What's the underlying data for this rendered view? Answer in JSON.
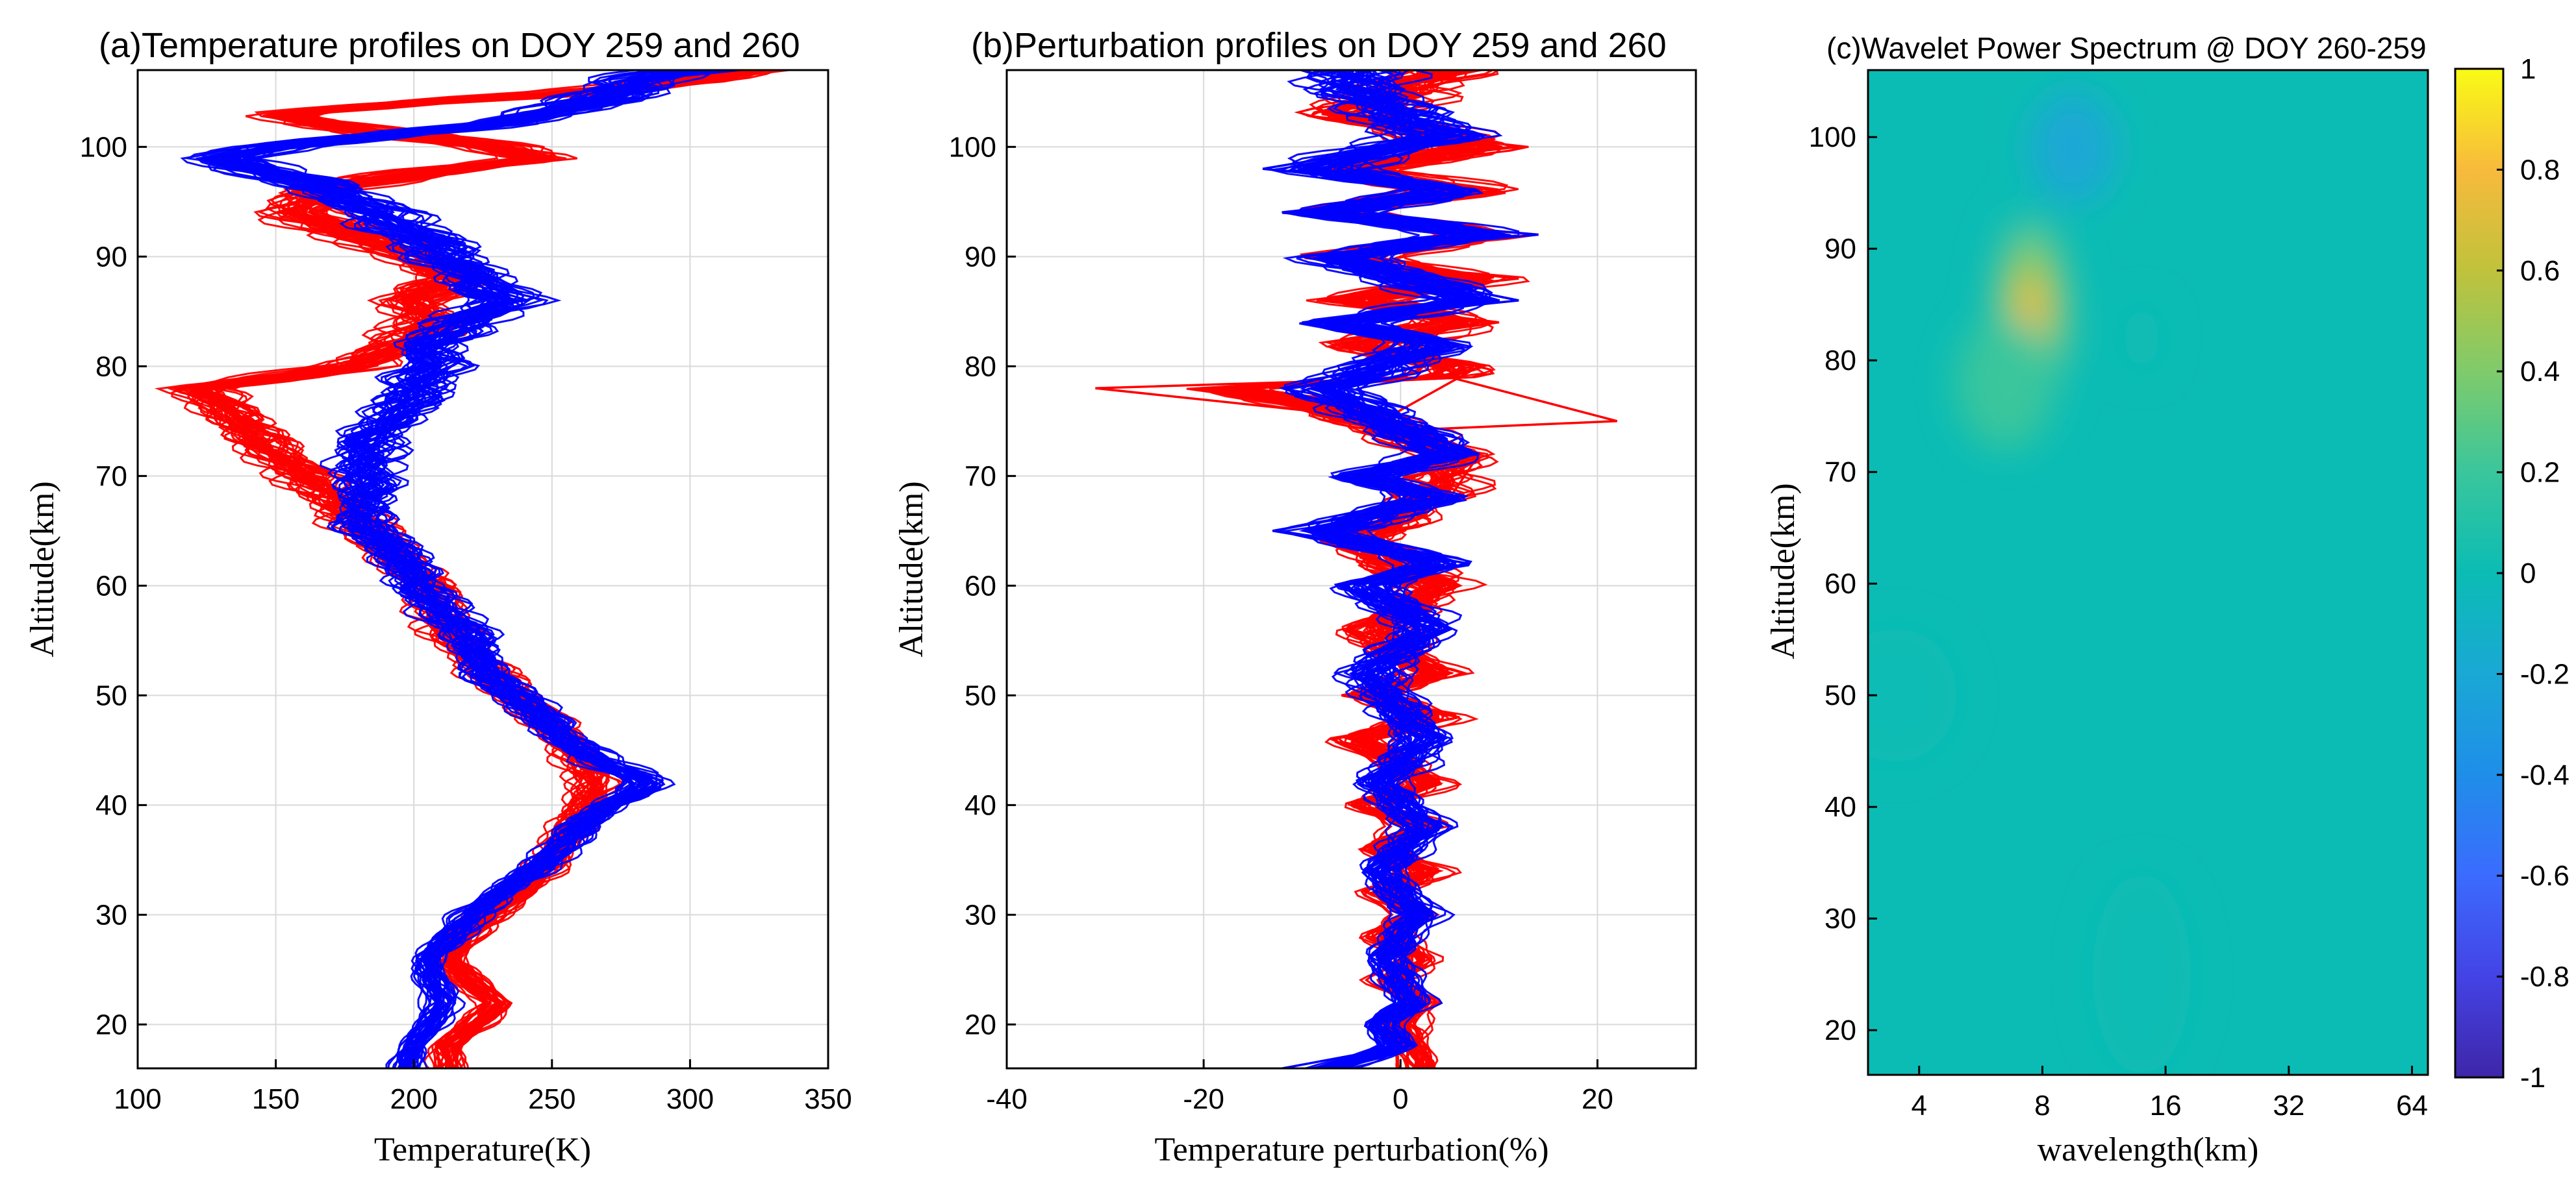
{
  "chart_data": [
    {
      "type": "line",
      "title": "(a)Temperature profiles on DOY 259 and 260",
      "xlabel": "Temperature(K)",
      "ylabel": "Altitude(km)",
      "xlim": [
        100,
        350
      ],
      "ylim": [
        16,
        107
      ],
      "xticks": [
        100,
        150,
        200,
        250,
        300,
        350
      ],
      "yticks": [
        20,
        30,
        40,
        50,
        60,
        70,
        80,
        90,
        100
      ],
      "grid": true,
      "series": [
        {
          "color": "#ff0000",
          "x": [
            213,
            212,
            222,
            230,
            220,
            212,
            218,
            228,
            238,
            246,
            252,
            258,
            262,
            265,
            262,
            255,
            246,
            236,
            228,
            220,
            212,
            210,
            206,
            195,
            180,
            122,
            180,
            195,
            205,
            200,
            215,
            200,
            178,
            160,
            165,
            185,
            210,
            230,
            246,
            230,
            200,
            170,
            150,
            200,
            260,
            300,
            320
          ],
          "y": [
            16,
            18,
            20,
            22,
            24,
            26,
            28,
            30,
            32,
            34,
            36,
            38,
            40,
            42,
            44,
            46,
            48,
            50,
            52,
            54,
            56,
            58,
            60,
            62,
            66,
            78,
            80,
            82,
            84,
            86,
            88,
            90,
            92,
            94,
            96,
            97,
            98,
            98.5,
            99,
            100,
            101,
            102,
            103,
            104,
            105,
            106,
            107
          ]
        },
        {
          "color": "#0000ff",
          "x": [
            198,
            200,
            205,
            210,
            208,
            205,
            212,
            222,
            232,
            242,
            252,
            262,
            270,
            278,
            282,
            278,
            268,
            256,
            245,
            236,
            228,
            222,
            216,
            210,
            185,
            180,
            190,
            200,
            210,
            205,
            215,
            235,
            225,
            208,
            200,
            190,
            170,
            140,
            130,
            150,
            190,
            230,
            260,
            280,
            300
          ],
          "y": [
            16,
            18,
            20,
            22,
            24,
            26,
            28,
            30,
            32,
            34,
            36,
            38,
            40,
            41,
            42,
            43,
            44,
            46,
            48,
            50,
            52,
            54,
            56,
            58,
            65,
            70,
            75,
            78,
            80,
            82,
            84,
            86,
            88,
            90,
            92,
            94,
            96,
            98,
            99,
            100,
            101,
            102,
            104,
            106,
            107
          ]
        }
      ]
    },
    {
      "type": "line",
      "title": "(b)Perturbation profiles on DOY 259 and 260",
      "xlabel": "Temperature perturbation(%)",
      "ylabel": "Altitude(km)",
      "xlim": [
        -40,
        30
      ],
      "ylim": [
        16,
        107
      ],
      "xticks": [
        -40,
        -20,
        0,
        20
      ],
      "yticks": [
        20,
        30,
        40,
        50,
        60,
        70,
        80,
        90,
        100
      ],
      "grid": true,
      "series": [
        {
          "color": "#ff0000",
          "x": [
            3,
            2,
            0,
            3,
            -2,
            3,
            -3,
            2,
            -3,
            4,
            -4,
            3,
            -5,
            4,
            -7,
            6,
            -6,
            5,
            -5,
            6,
            -8,
            5,
            8,
            -10,
            -31,
            5,
            22,
            -4,
            8,
            -6,
            10,
            -8,
            12,
            -10,
            14,
            -12,
            10,
            -8,
            12,
            -8,
            6
          ],
          "y": [
            16,
            18,
            20,
            22,
            24,
            26,
            28,
            30,
            32,
            34,
            36,
            38,
            40,
            42,
            46,
            48,
            50,
            52,
            56,
            60,
            64,
            68,
            72,
            76,
            78,
            79,
            75,
            74,
            80,
            82,
            84,
            86,
            88,
            90,
            92,
            94,
            96,
            98,
            100,
            103,
            107
          ]
        },
        {
          "color": "#0000ff",
          "x": [
            -12,
            -6,
            0,
            -3,
            2,
            -2,
            3,
            -3,
            4,
            -3,
            4,
            -5,
            5,
            -6,
            7,
            -13,
            6,
            -6,
            8,
            -12,
            6,
            -10,
            12,
            -10,
            14,
            -12,
            8,
            -14,
            6,
            -8
          ],
          "y": [
            16,
            17,
            18,
            20,
            22,
            26,
            30,
            34,
            38,
            42,
            46,
            52,
            56,
            60,
            62,
            65,
            68,
            70,
            72,
            78,
            82,
            84,
            86,
            90,
            92,
            94,
            96,
            98,
            101,
            106
          ]
        }
      ]
    },
    {
      "type": "heatmap",
      "title": "(c)Wavelet Power Spectrum @ DOY 260-259",
      "xlabel": "wavelength(km)",
      "ylabel": "Altitude(km)",
      "xscale": "log2",
      "xlim": [
        3,
        70
      ],
      "ylim": [
        16,
        106
      ],
      "xticks": [
        4,
        8,
        16,
        32,
        64
      ],
      "yticks": [
        20,
        30,
        40,
        50,
        60,
        70,
        80,
        90,
        100
      ],
      "colorbar": {
        "range": [
          -1,
          1
        ],
        "ticks": [
          -1,
          -0.8,
          -0.6,
          -0.4,
          -0.2,
          0,
          0.2,
          0.4,
          0.6,
          0.8,
          1
        ],
        "ticklabels": [
          "-1",
          "-0.8",
          "-0.6",
          "-0.4",
          "-0.2",
          "0",
          "0.2",
          "0.4",
          "0.6",
          "0.8",
          "1"
        ],
        "colormap": [
          "#3e26a8",
          "#4443e5",
          "#3b6bfe",
          "#1f8ee9",
          "#1aa8d5",
          "#0bbcb4",
          "#3ac69c",
          "#7fcb6b",
          "#c0c23b",
          "#f8ba3c",
          "#f9fb15"
        ]
      },
      "background_value": -0.05,
      "features": [
        {
          "wavelength": 7.5,
          "altitude": 84,
          "value": 0.7,
          "extent_x_log2": 0.35,
          "extent_y": 10
        },
        {
          "wavelength": 9.5,
          "altitude": 99,
          "value": -0.3,
          "extent_x_log2": 0.35,
          "extent_y": 5
        },
        {
          "wavelength": 6.5,
          "altitude": 78,
          "value": 0.1,
          "extent_x_log2": 0.4,
          "extent_y": 6
        },
        {
          "wavelength": 3.5,
          "altitude": 50,
          "value": 0.05,
          "extent_x_log2": 0.5,
          "extent_y": 6
        },
        {
          "wavelength": 14,
          "altitude": 25,
          "value": 0.05,
          "extent_x_log2": 0.4,
          "extent_y": 9
        },
        {
          "wavelength": 14,
          "altitude": 82,
          "value": 0.05,
          "extent_x_log2": 0.15,
          "extent_y": 3
        }
      ]
    }
  ]
}
